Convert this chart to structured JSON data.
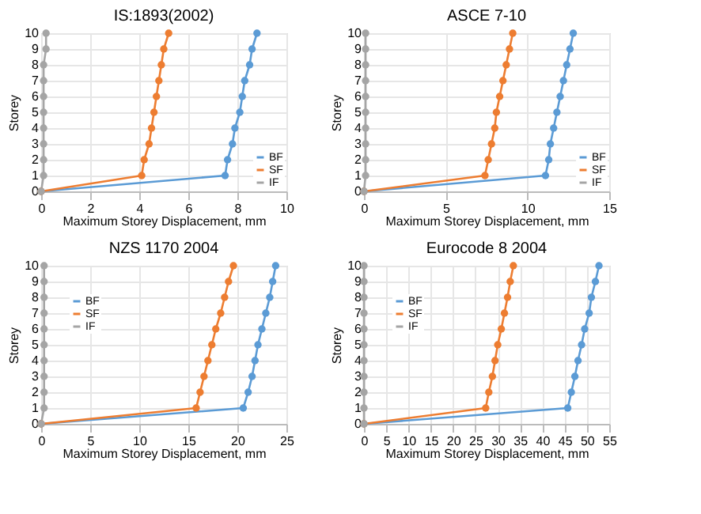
{
  "chart_data": [
    {
      "type": "line",
      "title": "IS:1893(2002)",
      "xlabel": "Maximum Storey Displacement,  mm",
      "ylabel": "Storey",
      "xlim": [
        0,
        10
      ],
      "xticks": [
        0,
        2,
        4,
        6,
        8,
        10
      ],
      "ylim": [
        0,
        10
      ],
      "yticks": [
        0,
        1,
        2,
        3,
        4,
        5,
        6,
        7,
        8,
        9,
        10
      ],
      "grid": true,
      "legend": "bottom right",
      "marker": "circle",
      "series": [
        {
          "name": "BF",
          "color": "#5b9bd5",
          "x": [
            0,
            7.5,
            7.6,
            7.8,
            7.9,
            8.1,
            8.2,
            8.3,
            8.5,
            8.6,
            8.8
          ],
          "values": [
            0,
            1,
            2,
            3,
            4,
            5,
            6,
            7,
            8,
            9,
            10
          ]
        },
        {
          "name": "SF",
          "color": "#ed7d31",
          "x": [
            0,
            4.1,
            4.2,
            4.4,
            4.5,
            4.6,
            4.7,
            4.8,
            4.9,
            5.0,
            5.2
          ],
          "values": [
            0,
            1,
            2,
            3,
            4,
            5,
            6,
            7,
            8,
            9,
            10
          ]
        },
        {
          "name": "IF",
          "color": "#a5a5a5",
          "x": [
            0,
            0.1,
            0.1,
            0.1,
            0.1,
            0.1,
            0.1,
            0.1,
            0.1,
            0.2,
            0.2
          ],
          "values": [
            0,
            1,
            2,
            3,
            4,
            5,
            6,
            7,
            8,
            9,
            10
          ]
        }
      ]
    },
    {
      "type": "line",
      "title": "ASCE 7-10",
      "xlabel": "Maximum Storey Displacement,  mm",
      "ylabel": "Storey",
      "xlim": [
        0,
        15
      ],
      "xticks": [
        0,
        5,
        10,
        15
      ],
      "ylim": [
        0,
        10
      ],
      "yticks": [
        0,
        1,
        2,
        3,
        4,
        5,
        6,
        7,
        8,
        9,
        10
      ],
      "grid": true,
      "legend": "bottom right",
      "marker": "circle",
      "series": [
        {
          "name": "BF",
          "color": "#5b9bd5",
          "x": [
            0,
            11.1,
            11.3,
            11.4,
            11.6,
            11.8,
            12.0,
            12.2,
            12.4,
            12.6,
            12.8
          ],
          "values": [
            0,
            1,
            2,
            3,
            4,
            5,
            6,
            7,
            8,
            9,
            10
          ]
        },
        {
          "name": "SF",
          "color": "#ed7d31",
          "x": [
            0,
            7.4,
            7.6,
            7.8,
            8.0,
            8.1,
            8.3,
            8.5,
            8.7,
            8.9,
            9.1
          ],
          "values": [
            0,
            1,
            2,
            3,
            4,
            5,
            6,
            7,
            8,
            9,
            10
          ]
        },
        {
          "name": "IF",
          "color": "#a5a5a5",
          "x": [
            0,
            0.1,
            0.1,
            0.1,
            0.1,
            0.1,
            0.1,
            0.1,
            0.1,
            0.1,
            0.1
          ],
          "values": [
            0,
            1,
            2,
            3,
            4,
            5,
            6,
            7,
            8,
            9,
            10
          ]
        }
      ]
    },
    {
      "type": "line",
      "title": "NZS 1170 2004",
      "xlabel": "Maximum Storey Displacement, mm",
      "ylabel": "Storey",
      "xlim": [
        0,
        25
      ],
      "xticks": [
        0,
        5,
        10,
        15,
        20,
        25
      ],
      "ylim": [
        0,
        10
      ],
      "yticks": [
        0,
        1,
        2,
        3,
        4,
        5,
        6,
        7,
        8,
        9,
        10
      ],
      "grid": true,
      "legend": "top left",
      "marker": "circle",
      "series": [
        {
          "name": "BF",
          "color": "#5b9bd5",
          "x": [
            0,
            20.6,
            21.1,
            21.5,
            21.8,
            22.1,
            22.5,
            22.9,
            23.3,
            23.6,
            23.9
          ],
          "values": [
            0,
            1,
            2,
            3,
            4,
            5,
            6,
            7,
            8,
            9,
            10
          ]
        },
        {
          "name": "SF",
          "color": "#ed7d31",
          "x": [
            0,
            15.8,
            16.2,
            16.6,
            17.0,
            17.4,
            17.8,
            18.3,
            18.7,
            19.1,
            19.6
          ],
          "values": [
            0,
            1,
            2,
            3,
            4,
            5,
            6,
            7,
            8,
            9,
            10
          ]
        },
        {
          "name": "IF",
          "color": "#a5a5a5",
          "x": [
            0,
            0.3,
            0.3,
            0.3,
            0.3,
            0.3,
            0.3,
            0.3,
            0.3,
            0.3,
            0.3
          ],
          "values": [
            0,
            1,
            2,
            3,
            4,
            5,
            6,
            7,
            8,
            9,
            10
          ]
        }
      ]
    },
    {
      "type": "line",
      "title": "Eurocode 8 2004",
      "xlabel": "Maximum Storey Displacement, mm",
      "ylabel": "Storey",
      "xlim": [
        0,
        55
      ],
      "xticks": [
        0,
        5,
        10,
        15,
        20,
        25,
        30,
        35,
        40,
        45,
        50,
        55
      ],
      "ylim": [
        0,
        10
      ],
      "yticks": [
        0,
        1,
        2,
        3,
        4,
        5,
        6,
        7,
        8,
        9,
        10
      ],
      "grid": true,
      "legend": "top left",
      "marker": "circle",
      "series": [
        {
          "name": "BF",
          "color": "#5b9bd5",
          "x": [
            0,
            45.7,
            46.5,
            47.3,
            48.0,
            48.8,
            49.5,
            50.5,
            51.0,
            51.9,
            52.7
          ],
          "values": [
            0,
            1,
            2,
            3,
            4,
            5,
            6,
            7,
            8,
            9,
            10
          ]
        },
        {
          "name": "SF",
          "color": "#ed7d31",
          "x": [
            0,
            27.3,
            28.0,
            28.8,
            29.4,
            30.0,
            30.8,
            31.5,
            32.2,
            32.8,
            33.5
          ],
          "values": [
            0,
            1,
            2,
            3,
            4,
            5,
            6,
            7,
            8,
            9,
            10
          ]
        },
        {
          "name": "IF",
          "color": "#a5a5a5",
          "x": [
            0,
            0,
            0,
            0,
            0,
            0,
            0,
            0,
            0,
            0,
            0
          ],
          "values": [
            0,
            1,
            2,
            3,
            4,
            5,
            6,
            7,
            8,
            9,
            10
          ]
        }
      ]
    }
  ]
}
